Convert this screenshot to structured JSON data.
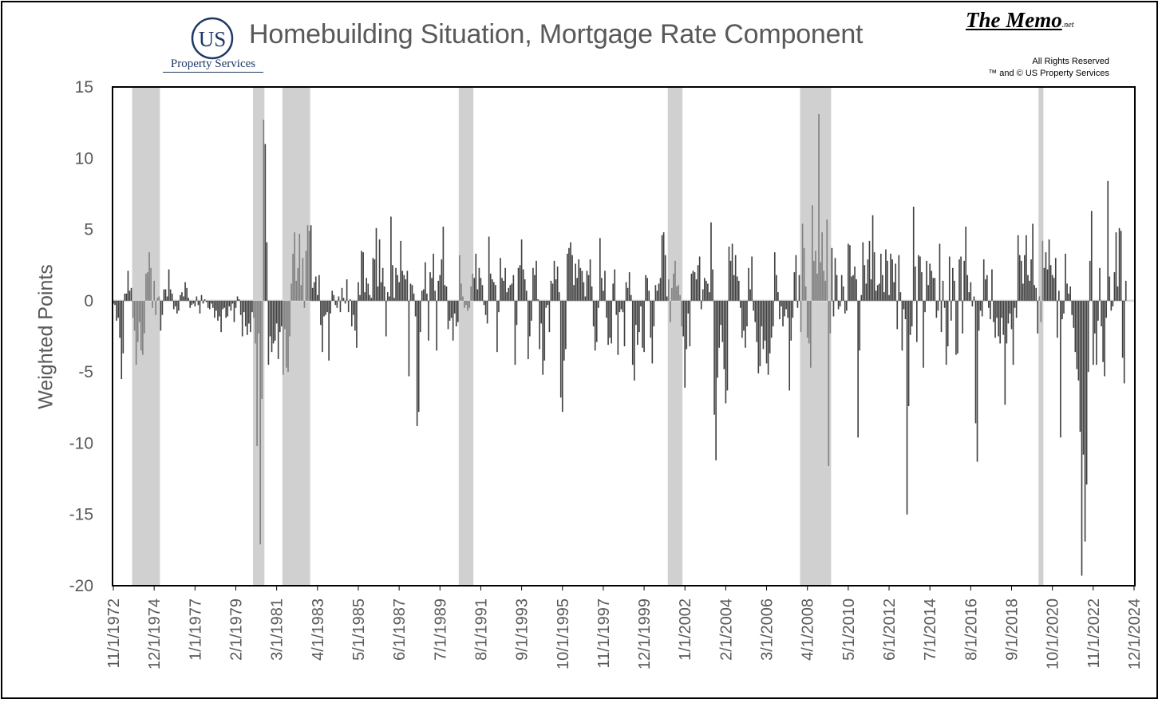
{
  "header": {
    "title": "Homebuilding Situation, Mortgage Rate Component",
    "logo_text": "US",
    "logo_subtitle": "Property Services",
    "memo_brand": "The Memo",
    "memo_suffix": ".net",
    "rights_line1": "All Rights Reserved",
    "rights_line2": "™ and © US Property Services"
  },
  "colors": {
    "bar_main": "#404040",
    "bar_recession": "#808080",
    "recession_band": "#d0d0d0",
    "axis_text": "#595959",
    "zero_line": "#d9d9d9",
    "logo": "#1f3864"
  },
  "chart_data": {
    "type": "bar",
    "title": "Homebuilding Situation, Mortgage Rate Component",
    "ylabel": "Weighted Points",
    "xlabel": "",
    "ylim": [
      -20,
      15
    ],
    "yticks": [
      15,
      10,
      5,
      0,
      -5,
      -10,
      -15,
      -20
    ],
    "xlim": [
      "1972-11",
      "2024-12"
    ],
    "x_tick_labels": [
      "11/1/1972",
      "12/1/1974",
      "1/1/1977",
      "2/1/1979",
      "3/1/1981",
      "4/1/1983",
      "5/1/1985",
      "6/1/1987",
      "7/1/1989",
      "8/1/1991",
      "9/1/1993",
      "10/1/1995",
      "11/1/1997",
      "12/1/1999",
      "1/1/2002",
      "2/1/2004",
      "3/1/2006",
      "4/1/2008",
      "5/1/2010",
      "6/1/2012",
      "7/1/2014",
      "8/1/2016",
      "9/1/2018",
      "10/1/2020",
      "11/1/2022",
      "12/1/2024"
    ],
    "grid": false,
    "legend": "none",
    "recession_bands": [
      {
        "start": "1973-11",
        "end": "1975-03"
      },
      {
        "start": "1980-01",
        "end": "1980-07"
      },
      {
        "start": "1981-07",
        "end": "1982-11"
      },
      {
        "start": "1990-07",
        "end": "1991-03"
      },
      {
        "start": "2001-03",
        "end": "2001-11"
      },
      {
        "start": "2007-12",
        "end": "2009-06"
      },
      {
        "start": "2020-02",
        "end": "2020-04"
      }
    ],
    "series": [
      {
        "frequency": "monthly",
        "x_start": "1972-11",
        "values_by_year": {
          "1972": [
            -0.2,
            -0.3
          ],
          "1973": [
            -1.4,
            -1.2,
            -2.6,
            -5.5,
            -3.7,
            0.5,
            0.5,
            2.1,
            0.7,
            0.9,
            -1.2,
            -2.1
          ],
          "1974": [
            -4.5,
            -2.9,
            -1.5,
            -3.5,
            -3.8,
            -2.3,
            1.9,
            2.0,
            3.4,
            2.3,
            -0.5,
            1.4
          ],
          "1975": [
            -1.0,
            0.2,
            0.3,
            -2.1,
            -1.0,
            0.8,
            0.8,
            0.3,
            2.2,
            0.8,
            0.5,
            -0.6
          ],
          "1976": [
            -0.4,
            -0.9,
            -0.7,
            0.4,
            0.6,
            0.3,
            1.3,
            0.9,
            0.2,
            -0.5,
            -0.3,
            -0.2
          ],
          "1977": [
            -0.4,
            0.3,
            -0.3,
            -0.9,
            0.4,
            -0.2,
            0.1,
            -0.1,
            -0.5,
            -0.6,
            -0.2,
            -0.5
          ],
          "1978": [
            -1.2,
            -0.7,
            -1.4,
            -1.1,
            -2.2,
            -0.6,
            -0.5,
            -1.2,
            -1.1,
            -0.4,
            -0.7,
            -0.2
          ],
          "1979": [
            -1.5,
            -0.5,
            0.3,
            0.1,
            -1.0,
            -2.5,
            -0.8,
            -1.8,
            -2.4,
            -1.6,
            -2.2,
            -0.8
          ],
          "1980": [
            -1.2,
            -3.0,
            -10.2,
            -2.3,
            -17.1,
            -6.9,
            12.7,
            11.0,
            4.1,
            -4.5,
            -2.5,
            -3.6
          ],
          "1981": [
            -3.0,
            -2.8,
            -1.6,
            -4.1,
            -2.2,
            -1.8,
            -5.2,
            -2.0,
            -4.7,
            -5.0,
            -2.5,
            1.2
          ],
          "1982": [
            3.3,
            4.8,
            1.4,
            2.3,
            4.7,
            1.1,
            3.0,
            -0.5,
            3.5,
            5.3,
            4.9,
            5.3
          ],
          "1983": [
            0.9,
            1.3,
            1.7,
            0.4,
            1.8,
            -1.7,
            -3.6,
            -1.1,
            -1.0,
            -0.8,
            -4.2,
            -0.9
          ],
          "1984": [
            0.7,
            0.4,
            -0.3,
            -0.5,
            0.3,
            -0.8,
            0.9,
            0.2,
            -0.2,
            1.5,
            -0.8,
            0.1
          ],
          "1985": [
            -1.8,
            -1.0,
            -2.1,
            -3.3,
            1.3,
            0.4,
            3.5,
            3.4,
            0.6,
            1.6,
            1.2,
            0.4
          ],
          "1986": [
            0.2,
            3.0,
            2.9,
            5.1,
            1.0,
            4.3,
            1.3,
            2.3,
            1.0,
            -2.5,
            0.6,
            0.3
          ],
          "1987": [
            5.9,
            2.5,
            0.2,
            2.3,
            1.8,
            1.3,
            4.2,
            2.1,
            1.8,
            1.5,
            2.1,
            -5.3
          ],
          "1988": [
            1.2,
            1.1,
            0.5,
            -1.1,
            -8.8,
            -7.8,
            -2.2,
            0.7,
            0.8,
            2.7,
            0.5,
            -2.8
          ],
          "1989": [
            2.0,
            1.6,
            3.3,
            0.7,
            -3.5,
            1.4,
            1.8,
            2.9,
            5.2,
            1.1,
            1.0,
            -2.0
          ],
          "1990": [
            -1.4,
            -1.2,
            -2.8,
            -0.9,
            -1.8,
            -1.5,
            3.2,
            1.2,
            0.3,
            -0.5,
            -0.3,
            -0.7
          ],
          "1991": [
            -0.5,
            1.0,
            1.9,
            1.6,
            3.3,
            0.8,
            2.3,
            1.6,
            1.1,
            -0.3,
            -1.0,
            -1.6
          ],
          "1992": [
            4.5,
            1.9,
            1.5,
            1.3,
            1.1,
            -3.6,
            -0.8,
            3.0,
            1.6,
            1.4,
            2.3,
            0.6
          ],
          "1993": [
            0.9,
            1.1,
            1.2,
            1.8,
            -4.5,
            -1.7,
            2.3,
            2.5,
            4.3,
            2.2,
            1.5,
            0.7
          ],
          "1994": [
            -4.1,
            -2.5,
            -1.4,
            2.3,
            1.8,
            2.8,
            0.1,
            -3.4,
            -1.6,
            -5.2,
            -4.2,
            -0.5
          ],
          "1995": [
            -0.3,
            -2.2,
            1.4,
            1.2,
            2.8,
            1.5,
            2.4,
            0.6,
            -6.8,
            -7.8,
            -4.2,
            -3.4
          ],
          "1996": [
            3.3,
            3.7,
            4.1,
            3.2,
            1.1,
            2.6,
            1.6,
            2.9,
            2.3,
            2.1,
            1.3,
            0.3
          ],
          "1997": [
            2.1,
            1.8,
            2.9,
            1.0,
            -1.8,
            -3.5,
            -2.9,
            -0.5,
            4.4,
            1.6,
            0.7,
            2.1
          ],
          "1998": [
            -1.2,
            -3.1,
            -2.6,
            -3.0,
            1.2,
            2.2,
            -1.0,
            -3.8,
            -0.8,
            -0.6,
            -0.8,
            -3.2
          ],
          "1999": [
            1.3,
            0.9,
            2.0,
            0.4,
            -4.5,
            -5.6,
            -1.7,
            -3.1,
            -2.2,
            -0.4,
            -3.3,
            -3.6
          ],
          "2000": [
            1.8,
            1.6,
            0.7,
            -2.6,
            -4.4,
            -1.8,
            1.1,
            0.7,
            1.2,
            1.6,
            4.6,
            4.8
          ],
          "2001": [
            3.2,
            0.3,
            1.5,
            -1.5,
            0.9,
            1.9,
            2.8,
            1.0,
            1.1,
            0.4,
            -1.8,
            -2.5
          ],
          "2002": [
            -6.1,
            -3.4,
            -0.9,
            -3.2,
            1.9,
            2.1,
            2.0,
            1.5,
            2.5,
            3.1,
            -0.6,
            0.8
          ],
          "2003": [
            1.6,
            1.4,
            1.2,
            0.6,
            5.5,
            2.2,
            -8.0,
            -11.2,
            -5.4,
            -3.3,
            -1.7,
            -2.9
          ],
          "2004": [
            -4.8,
            -7.2,
            -6.3,
            3.8,
            2.8,
            4.0,
            1.8,
            3.2,
            1.7,
            1.4,
            -0.5,
            -2.6
          ],
          "2005": [
            -2.1,
            -3.3,
            -1.8,
            2.3,
            0.8,
            3.1,
            -0.7,
            -1.5,
            -2.9,
            -5.1,
            -4.6,
            -1.8
          ],
          "2006": [
            -3.4,
            -2.8,
            -4.4,
            -5.2,
            -3.7,
            -2.6,
            -1.8,
            3.4,
            1.8,
            0.6,
            -1.3,
            -0.4
          ],
          "2007": [
            -1.8,
            -1.1,
            -0.6,
            -1.2,
            -6.3,
            -2.8,
            -1.2,
            2.0,
            3.2,
            -0.5,
            1.8,
            -2.2
          ],
          "2008": [
            5.4,
            3.7,
            1.0,
            -2.6,
            -3.0,
            -4.7,
            6.7,
            2.8,
            3.5,
            1.9,
            13.1,
            2.7
          ],
          "2009": [
            4.8,
            2.1,
            1.4,
            5.7,
            -11.6,
            -2.3,
            3.7,
            -1.1,
            3.0,
            1.8,
            -0.6,
            -0.4
          ],
          "2010": [
            1.8,
            1.0,
            -0.9,
            -0.7,
            4.0,
            3.9,
            1.7,
            1.8,
            2.4,
            1.5,
            -9.6,
            -3.5
          ],
          "2011": [
            0.4,
            4.1,
            2.5,
            1.2,
            2.9,
            4.2,
            1.5,
            6.0,
            3.4,
            0.7,
            1.1,
            1.2
          ],
          "2012": [
            3.3,
            1.8,
            0.6,
            3.6,
            2.8,
            0.4,
            3.3,
            2.9,
            1.3,
            2.6,
            -2.0,
            3.2
          ],
          "2013": [
            0.6,
            -3.5,
            -0.6,
            -1.3,
            -15.0,
            -7.4,
            -2.4,
            -1.8,
            6.6,
            2.4,
            -2.9,
            3.2
          ],
          "2014": [
            3.1,
            2.0,
            -4.7,
            -0.8,
            2.8,
            1.1,
            2.6,
            2.1,
            1.6,
            1.6,
            -1.2,
            -0.7
          ],
          "2015": [
            4.0,
            -2.2,
            1.4,
            -0.5,
            -4.5,
            -3.2,
            3.1,
            -1.4,
            2.3,
            1.4,
            -3.8,
            -3.7
          ],
          "2016": [
            2.9,
            3.1,
            -2.3,
            2.8,
            5.2,
            1.8,
            0.6,
            1.3,
            -0.4,
            0.3,
            -8.6,
            -11.3
          ],
          "2017": [
            -2.1,
            -0.7,
            -1.1,
            2.9,
            1.5,
            1.8,
            -0.5,
            -1.3,
            2.2,
            -1.5,
            -2.6,
            -1.2
          ],
          "2018": [
            -2.5,
            -3.0,
            -1.2,
            -2.4,
            -7.3,
            -3.0,
            -1.6,
            -0.9,
            -2.0,
            -4.5,
            -0.5,
            -1.2
          ],
          "2019": [
            4.6,
            3.2,
            2.8,
            1.2,
            3.2,
            4.6,
            1.8,
            1.4,
            2.9,
            5.4,
            1.1,
            0.9
          ],
          "2020": [
            -2.3,
            0.3,
            -1.5,
            4.2,
            2.3,
            3.4,
            2.2,
            4.3,
            2.5,
            1.8,
            1.6,
            3.0
          ],
          "2021": [
            -2.6,
            0.7,
            -9.6,
            -1.3,
            -0.9,
            3.3,
            1.2,
            0.5,
            1.0,
            -1.0,
            -1.9,
            -3.6
          ],
          "2022": [
            -4.8,
            -5.6,
            -9.2,
            -19.3,
            -10.8,
            -16.9,
            -12.9,
            -5.0,
            2.8,
            6.3,
            -4.5,
            -2.3
          ],
          "2023": [
            -4.5,
            -1.4,
            2.3,
            -1.8,
            -4.3,
            -5.3,
            -1.2,
            8.4,
            1.7,
            -0.7,
            -0.4,
            2.0
          ],
          "2024": [
            4.8,
            1.0,
            5.1,
            4.9,
            -4.0,
            -5.8,
            1.4
          ]
        }
      }
    ]
  }
}
